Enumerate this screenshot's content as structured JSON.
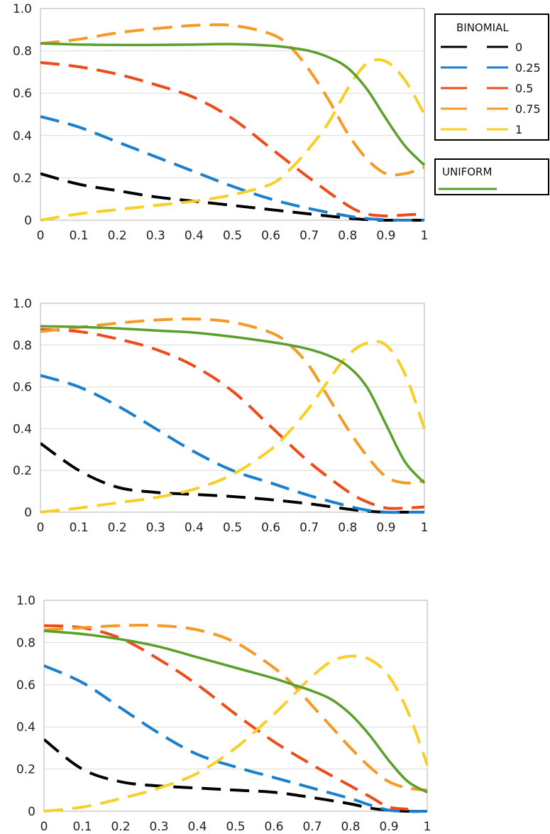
{
  "legend": {
    "binomial_title": "BINOMIAL",
    "uniform_title": "UNIFORM",
    "entries": [
      {
        "label": "0",
        "color": "#000000"
      },
      {
        "label": "0.25",
        "color": "#1a7fcc"
      },
      {
        "label": "0.5",
        "color": "#ee4b1a"
      },
      {
        "label": "0.75",
        "color": "#f59a26"
      },
      {
        "label": "1",
        "color": "#f7cf26"
      }
    ],
    "uniform_color": "#5a9e2c"
  },
  "chart_data": [
    {
      "type": "line",
      "xlim": [
        0,
        1
      ],
      "ylim": [
        0,
        1
      ],
      "x_ticks": [
        "0",
        "0.1",
        "0.2",
        "0.3",
        "0.4",
        "0.5",
        "0.6",
        "0.7",
        "0.8",
        "0.9",
        "1"
      ],
      "y_ticks": [
        "0",
        "0.2",
        "0.4",
        "0.6",
        "0.8",
        "1.0"
      ],
      "grid": "horizontal",
      "series": [
        {
          "name": "0",
          "group": "binomial",
          "color": "#000000",
          "dashed": true,
          "x": [
            0,
            0.1,
            0.2,
            0.3,
            0.4,
            0.5,
            0.6,
            0.7,
            0.8,
            0.85,
            0.9,
            0.95,
            1
          ],
          "y": [
            0.22,
            0.17,
            0.14,
            0.11,
            0.09,
            0.07,
            0.05,
            0.03,
            0.01,
            0.003,
            0.0,
            0.0,
            0.0
          ]
        },
        {
          "name": "0.25",
          "group": "binomial",
          "color": "#1a7fcc",
          "dashed": true,
          "x": [
            0,
            0.1,
            0.2,
            0.3,
            0.4,
            0.5,
            0.6,
            0.7,
            0.8,
            0.85,
            0.9,
            0.95,
            1
          ],
          "y": [
            0.49,
            0.44,
            0.37,
            0.3,
            0.23,
            0.16,
            0.1,
            0.055,
            0.02,
            0.008,
            0.002,
            0.0,
            0.0
          ]
        },
        {
          "name": "0.5",
          "group": "binomial",
          "color": "#ee4b1a",
          "dashed": true,
          "x": [
            0,
            0.1,
            0.2,
            0.3,
            0.4,
            0.5,
            0.6,
            0.7,
            0.8,
            0.85,
            0.9,
            0.95,
            1
          ],
          "y": [
            0.745,
            0.725,
            0.69,
            0.64,
            0.58,
            0.48,
            0.34,
            0.2,
            0.07,
            0.03,
            0.02,
            0.025,
            0.03
          ]
        },
        {
          "name": "0.75",
          "group": "binomial",
          "color": "#f59a26",
          "dashed": true,
          "x": [
            0,
            0.1,
            0.2,
            0.3,
            0.4,
            0.5,
            0.6,
            0.65,
            0.7,
            0.75,
            0.8,
            0.85,
            0.9,
            0.95,
            1
          ],
          "y": [
            0.835,
            0.855,
            0.885,
            0.905,
            0.92,
            0.92,
            0.88,
            0.82,
            0.71,
            0.57,
            0.41,
            0.29,
            0.22,
            0.22,
            0.25
          ]
        },
        {
          "name": "1",
          "group": "binomial",
          "color": "#f7cf26",
          "dashed": true,
          "x": [
            0,
            0.1,
            0.2,
            0.3,
            0.4,
            0.5,
            0.6,
            0.65,
            0.7,
            0.75,
            0.8,
            0.85,
            0.9,
            0.95,
            1
          ],
          "y": [
            0.0,
            0.03,
            0.05,
            0.07,
            0.09,
            0.12,
            0.17,
            0.24,
            0.34,
            0.46,
            0.62,
            0.74,
            0.75,
            0.66,
            0.5
          ]
        },
        {
          "name": "UNIFORM",
          "group": "uniform",
          "color": "#5a9e2c",
          "dashed": false,
          "x": [
            0,
            0.1,
            0.2,
            0.3,
            0.4,
            0.5,
            0.6,
            0.65,
            0.7,
            0.75,
            0.8,
            0.85,
            0.9,
            0.95,
            1
          ],
          "y": [
            0.835,
            0.83,
            0.828,
            0.828,
            0.83,
            0.832,
            0.825,
            0.815,
            0.8,
            0.77,
            0.72,
            0.62,
            0.48,
            0.35,
            0.26
          ]
        }
      ]
    },
    {
      "type": "line",
      "xlim": [
        0,
        1
      ],
      "ylim": [
        0,
        1
      ],
      "x_ticks": [
        "0",
        "0.1",
        "0.2",
        "0.3",
        "0.4",
        "0.5",
        "0.6",
        "0.7",
        "0.8",
        "0.9",
        "1"
      ],
      "y_ticks": [
        "0",
        "0.2",
        "0.4",
        "0.6",
        "0.8",
        "1.0"
      ],
      "grid": "horizontal",
      "series": [
        {
          "name": "0",
          "group": "binomial",
          "color": "#000000",
          "dashed": true,
          "x": [
            0,
            0.1,
            0.2,
            0.3,
            0.4,
            0.5,
            0.6,
            0.7,
            0.8,
            0.85,
            0.9,
            0.95,
            1
          ],
          "y": [
            0.33,
            0.2,
            0.12,
            0.095,
            0.085,
            0.075,
            0.06,
            0.04,
            0.015,
            0.005,
            0.0,
            0.0,
            0.0
          ]
        },
        {
          "name": "0.25",
          "group": "binomial",
          "color": "#1a7fcc",
          "dashed": true,
          "x": [
            0,
            0.1,
            0.2,
            0.3,
            0.4,
            0.5,
            0.6,
            0.7,
            0.8,
            0.85,
            0.9,
            0.95,
            1
          ],
          "y": [
            0.655,
            0.6,
            0.51,
            0.4,
            0.29,
            0.2,
            0.14,
            0.08,
            0.03,
            0.01,
            0.0,
            0.0,
            0.0
          ]
        },
        {
          "name": "0.5",
          "group": "binomial",
          "color": "#ee4b1a",
          "dashed": true,
          "x": [
            0,
            0.1,
            0.2,
            0.3,
            0.4,
            0.5,
            0.6,
            0.7,
            0.8,
            0.85,
            0.9,
            0.95,
            1
          ],
          "y": [
            0.875,
            0.865,
            0.83,
            0.78,
            0.7,
            0.58,
            0.41,
            0.24,
            0.1,
            0.05,
            0.02,
            0.02,
            0.025
          ]
        },
        {
          "name": "0.75",
          "group": "binomial",
          "color": "#f59a26",
          "dashed": true,
          "x": [
            0,
            0.1,
            0.2,
            0.3,
            0.4,
            0.5,
            0.6,
            0.65,
            0.7,
            0.75,
            0.8,
            0.85,
            0.9,
            0.95,
            1
          ],
          "y": [
            0.865,
            0.885,
            0.905,
            0.92,
            0.925,
            0.91,
            0.86,
            0.8,
            0.7,
            0.55,
            0.4,
            0.27,
            0.17,
            0.14,
            0.15
          ]
        },
        {
          "name": "1",
          "group": "binomial",
          "color": "#f7cf26",
          "dashed": true,
          "x": [
            0,
            0.1,
            0.2,
            0.3,
            0.4,
            0.5,
            0.6,
            0.65,
            0.7,
            0.75,
            0.8,
            0.85,
            0.9,
            0.95,
            1
          ],
          "y": [
            0.0,
            0.02,
            0.045,
            0.07,
            0.11,
            0.18,
            0.3,
            0.39,
            0.5,
            0.63,
            0.75,
            0.81,
            0.8,
            0.66,
            0.4
          ]
        },
        {
          "name": "UNIFORM",
          "group": "uniform",
          "color": "#5a9e2c",
          "dashed": false,
          "x": [
            0,
            0.1,
            0.2,
            0.3,
            0.4,
            0.5,
            0.6,
            0.65,
            0.7,
            0.75,
            0.8,
            0.85,
            0.9,
            0.95,
            1
          ],
          "y": [
            0.89,
            0.887,
            0.88,
            0.87,
            0.86,
            0.84,
            0.815,
            0.8,
            0.78,
            0.75,
            0.7,
            0.6,
            0.42,
            0.24,
            0.14
          ]
        }
      ]
    },
    {
      "type": "line",
      "xlim": [
        0,
        1
      ],
      "ylim": [
        0,
        1
      ],
      "x_ticks": [
        "0",
        "0.1",
        "0.2",
        "0.3",
        "0.4",
        "0.5",
        "0.6",
        "0.7",
        "0.8",
        "0.9",
        "1"
      ],
      "y_ticks": [
        "0",
        "0.2",
        "0.4",
        "0.6",
        "0.8",
        "1.0"
      ],
      "grid": "horizontal",
      "series": [
        {
          "name": "0",
          "group": "binomial",
          "color": "#000000",
          "dashed": true,
          "x": [
            0,
            0.1,
            0.2,
            0.3,
            0.4,
            0.5,
            0.6,
            0.7,
            0.8,
            0.85,
            0.9,
            0.95,
            1
          ],
          "y": [
            0.34,
            0.2,
            0.14,
            0.12,
            0.11,
            0.1,
            0.09,
            0.065,
            0.035,
            0.015,
            0.005,
            0.0,
            0.0
          ]
        },
        {
          "name": "0.25",
          "group": "binomial",
          "color": "#1a7fcc",
          "dashed": true,
          "x": [
            0,
            0.1,
            0.2,
            0.3,
            0.4,
            0.5,
            0.6,
            0.7,
            0.8,
            0.85,
            0.9,
            0.95,
            1
          ],
          "y": [
            0.69,
            0.61,
            0.49,
            0.37,
            0.27,
            0.21,
            0.16,
            0.11,
            0.06,
            0.03,
            0.005,
            0.0,
            0.0
          ]
        },
        {
          "name": "0.5",
          "group": "binomial",
          "color": "#ee4b1a",
          "dashed": true,
          "x": [
            0,
            0.1,
            0.2,
            0.3,
            0.4,
            0.5,
            0.6,
            0.7,
            0.8,
            0.85,
            0.9,
            0.95
          ],
          "y": [
            0.88,
            0.87,
            0.82,
            0.72,
            0.6,
            0.46,
            0.33,
            0.22,
            0.12,
            0.07,
            0.02,
            0.01
          ]
        },
        {
          "name": "0.75",
          "group": "binomial",
          "color": "#f59a26",
          "dashed": true,
          "x": [
            0,
            0.1,
            0.2,
            0.3,
            0.4,
            0.5,
            0.6,
            0.65,
            0.7,
            0.75,
            0.8,
            0.85,
            0.9,
            0.95,
            1
          ],
          "y": [
            0.86,
            0.87,
            0.88,
            0.88,
            0.86,
            0.8,
            0.68,
            0.6,
            0.5,
            0.4,
            0.3,
            0.21,
            0.14,
            0.11,
            0.1
          ]
        },
        {
          "name": "1",
          "group": "binomial",
          "color": "#f7cf26",
          "dashed": true,
          "x": [
            0,
            0.1,
            0.2,
            0.3,
            0.4,
            0.5,
            0.6,
            0.65,
            0.7,
            0.75,
            0.8,
            0.85,
            0.9,
            0.95,
            1
          ],
          "y": [
            0.0,
            0.02,
            0.06,
            0.11,
            0.18,
            0.3,
            0.46,
            0.55,
            0.64,
            0.71,
            0.735,
            0.72,
            0.64,
            0.47,
            0.22
          ]
        },
        {
          "name": "UNIFORM",
          "group": "uniform",
          "color": "#5a9e2c",
          "dashed": false,
          "x": [
            0,
            0.1,
            0.2,
            0.3,
            0.4,
            0.5,
            0.6,
            0.65,
            0.7,
            0.75,
            0.8,
            0.85,
            0.9,
            0.95,
            1
          ],
          "y": [
            0.855,
            0.84,
            0.815,
            0.78,
            0.73,
            0.68,
            0.63,
            0.6,
            0.57,
            0.53,
            0.46,
            0.36,
            0.24,
            0.14,
            0.09
          ]
        }
      ]
    }
  ]
}
